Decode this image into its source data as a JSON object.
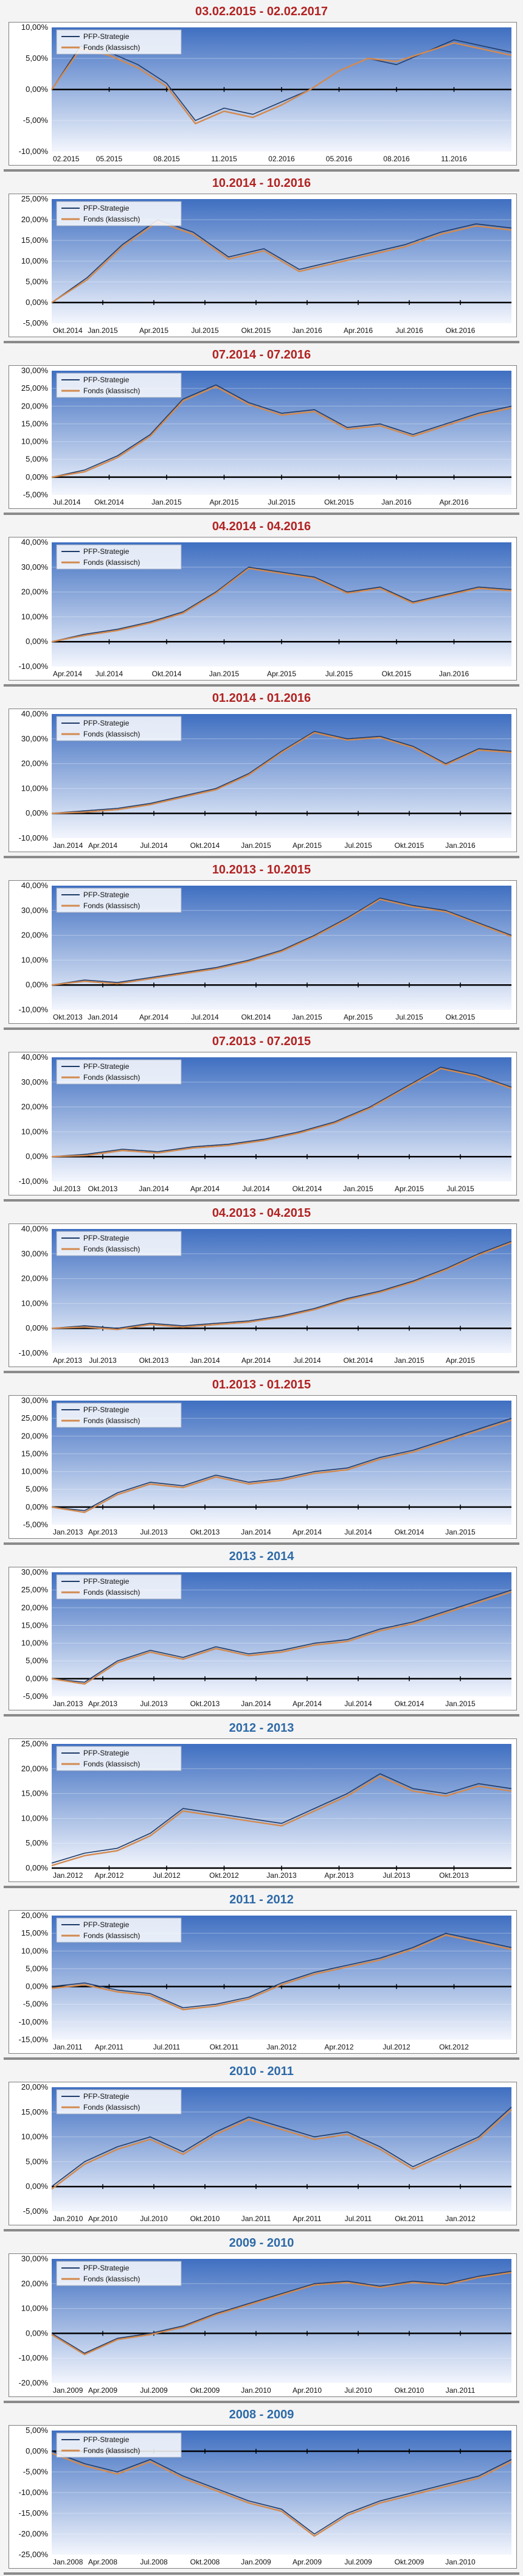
{
  "legend": {
    "strategy": "PFP-Strategie",
    "fund": "Fonds (klassisch)"
  },
  "colors": {
    "strategy": "#1f3b68",
    "fund": "#d38a4f",
    "plot_top": "#3f6fc1",
    "plot_bottom": "#f3f6fd",
    "title_red": "#b22222",
    "title_blue": "#2e6aa8"
  },
  "chart_data": [
    {
      "type": "line",
      "title": "03.02.2015 - 02.02.2017",
      "title_color": "red",
      "y_ticks": [
        "10,00%",
        "5,00%",
        "0,00%",
        "-5,00%",
        "-10,00%"
      ],
      "ylim": [
        -10,
        10
      ],
      "x_ticks": [
        "02.2015",
        "05.2015",
        "08.2015",
        "11.2015",
        "02.2016",
        "05.2016",
        "08.2016",
        "11.2016"
      ],
      "series": [
        {
          "name": "PFP-Strategie",
          "values": [
            0,
            7,
            6,
            4,
            1,
            -5,
            -3,
            -4,
            -2,
            0,
            3,
            5,
            4,
            6,
            8,
            7,
            6
          ]
        },
        {
          "name": "Fonds (klassisch)",
          "values": [
            0,
            6.5,
            5.5,
            3.5,
            0.5,
            -5.5,
            -3.5,
            -4.5,
            -2.5,
            0,
            3,
            5,
            4.5,
            6,
            7.5,
            6.5,
            5.5
          ]
        }
      ]
    },
    {
      "type": "line",
      "title": "10.2014 - 10.2016",
      "title_color": "red",
      "y_ticks": [
        "25,00%",
        "20,00%",
        "15,00%",
        "10,00%",
        "5,00%",
        "0,00%",
        "-5,00%"
      ],
      "ylim": [
        -5,
        25
      ],
      "x_ticks": [
        "Okt.2014",
        "Jan.2015",
        "Apr.2015",
        "Jul.2015",
        "Okt.2015",
        "Jan.2016",
        "Apr.2016",
        "Jul.2016",
        "Okt.2016"
      ],
      "series": [
        {
          "name": "PFP-Strategie",
          "values": [
            0,
            6,
            14,
            20,
            17,
            11,
            13,
            8,
            10,
            12,
            14,
            17,
            19,
            18
          ]
        },
        {
          "name": "Fonds (klassisch)",
          "values": [
            0,
            5.5,
            13.5,
            19.5,
            16.5,
            10.5,
            12.5,
            7.5,
            9.5,
            11.5,
            13.5,
            16.5,
            18.5,
            17.5
          ]
        }
      ]
    },
    {
      "type": "line",
      "title": "07.2014 - 07.2016",
      "title_color": "red",
      "y_ticks": [
        "30,00%",
        "25,00%",
        "20,00%",
        "15,00%",
        "10,00%",
        "5,00%",
        "0,00%",
        "-5,00%"
      ],
      "ylim": [
        -5,
        30
      ],
      "x_ticks": [
        "Jul.2014",
        "Okt.2014",
        "Jan.2015",
        "Apr.2015",
        "Jul.2015",
        "Okt.2015",
        "Jan.2016",
        "Apr.2016"
      ],
      "series": [
        {
          "name": "PFP-Strategie",
          "values": [
            0,
            2,
            6,
            12,
            22,
            26,
            21,
            18,
            19,
            14,
            15,
            12,
            15,
            18,
            20
          ]
        },
        {
          "name": "Fonds (klassisch)",
          "values": [
            0,
            1.5,
            5.5,
            11.5,
            21.5,
            25.5,
            20.5,
            17.5,
            18.5,
            13.5,
            14.5,
            11.5,
            14.5,
            17.5,
            19.5
          ]
        }
      ]
    },
    {
      "type": "line",
      "title": "04.2014 - 04.2016",
      "title_color": "red",
      "y_ticks": [
        "40,00%",
        "30,00%",
        "20,00%",
        "10,00%",
        "0,00%",
        "-10,00%"
      ],
      "ylim": [
        -10,
        40
      ],
      "x_ticks": [
        "Apr.2014",
        "Jul.2014",
        "Okt.2014",
        "Jan.2015",
        "Apr.2015",
        "Jul.2015",
        "Okt.2015",
        "Jan.2016"
      ],
      "series": [
        {
          "name": "PFP-Strategie",
          "values": [
            0,
            3,
            5,
            8,
            12,
            20,
            30,
            28,
            26,
            20,
            22,
            16,
            19,
            22,
            21
          ]
        },
        {
          "name": "Fonds (klassisch)",
          "values": [
            0,
            2.5,
            4.5,
            7.5,
            11.5,
            19.5,
            29.5,
            27.5,
            25.5,
            19.5,
            21.5,
            15.5,
            18.5,
            21.5,
            20.5
          ]
        }
      ]
    },
    {
      "type": "line",
      "title": "01.2014 - 01.2016",
      "title_color": "red",
      "y_ticks": [
        "40,00%",
        "30,00%",
        "20,00%",
        "10,00%",
        "0,00%",
        "-10,00%"
      ],
      "ylim": [
        -10,
        40
      ],
      "x_ticks": [
        "Jan.2014",
        "Apr.2014",
        "Jul.2014",
        "Okt.2014",
        "Jan.2015",
        "Apr.2015",
        "Jul.2015",
        "Okt.2015",
        "Jan.2016"
      ],
      "series": [
        {
          "name": "PFP-Strategie",
          "values": [
            0,
            1,
            2,
            4,
            7,
            10,
            16,
            25,
            33,
            30,
            31,
            27,
            20,
            26,
            25
          ]
        },
        {
          "name": "Fonds (klassisch)",
          "values": [
            0,
            0.5,
            1.5,
            3.5,
            6.5,
            9.5,
            15.5,
            24.5,
            32.5,
            29.5,
            30.5,
            26.5,
            19.5,
            25.5,
            24.5
          ]
        }
      ]
    },
    {
      "type": "line",
      "title": "10.2013 - 10.2015",
      "title_color": "red",
      "y_ticks": [
        "40,00%",
        "30,00%",
        "20,00%",
        "10,00%",
        "0,00%",
        "-10,00%"
      ],
      "ylim": [
        -10,
        40
      ],
      "x_ticks": [
        "Okt.2013",
        "Jan.2014",
        "Apr.2014",
        "Jul.2014",
        "Okt.2014",
        "Jan.2015",
        "Apr.2015",
        "Jul.2015",
        "Okt.2015"
      ],
      "series": [
        {
          "name": "PFP-Strategie",
          "values": [
            0,
            2,
            1,
            3,
            5,
            7,
            10,
            14,
            20,
            27,
            35,
            32,
            30,
            25,
            20
          ]
        },
        {
          "name": "Fonds (klassisch)",
          "values": [
            0,
            1.5,
            0.5,
            2.5,
            4.5,
            6.5,
            9.5,
            13.5,
            19.5,
            26.5,
            34.5,
            31.5,
            29.5,
            24.5,
            19.5
          ]
        }
      ]
    },
    {
      "type": "line",
      "title": "07.2013 - 07.2015",
      "title_color": "red",
      "y_ticks": [
        "40,00%",
        "30,00%",
        "20,00%",
        "10,00%",
        "0,00%",
        "-10,00%"
      ],
      "ylim": [
        -10,
        40
      ],
      "x_ticks": [
        "Jul.2013",
        "Okt.2013",
        "Jan.2014",
        "Apr.2014",
        "Jul.2014",
        "Okt.2014",
        "Jan.2015",
        "Apr.2015",
        "Jul.2015"
      ],
      "series": [
        {
          "name": "PFP-Strategie",
          "values": [
            0,
            1,
            3,
            2,
            4,
            5,
            7,
            10,
            14,
            20,
            28,
            36,
            33,
            28
          ]
        },
        {
          "name": "Fonds (klassisch)",
          "values": [
            0,
            0.5,
            2.5,
            1.5,
            3.5,
            4.5,
            6.5,
            9.5,
            13.5,
            19.5,
            27.5,
            35.5,
            32.5,
            27.5
          ]
        }
      ]
    },
    {
      "type": "line",
      "title": "04.2013 - 04.2015",
      "title_color": "red",
      "y_ticks": [
        "40,00%",
        "30,00%",
        "20,00%",
        "10,00%",
        "0,00%",
        "-10,00%"
      ],
      "ylim": [
        -10,
        40
      ],
      "x_ticks": [
        "Apr.2013",
        "Jul.2013",
        "Okt.2013",
        "Jan.2014",
        "Apr.2014",
        "Jul.2014",
        "Okt.2014",
        "Jan.2015",
        "Apr.2015"
      ],
      "series": [
        {
          "name": "PFP-Strategie",
          "values": [
            0,
            1,
            0,
            2,
            1,
            2,
            3,
            5,
            8,
            12,
            15,
            19,
            24,
            30,
            35
          ]
        },
        {
          "name": "Fonds (klassisch)",
          "values": [
            0,
            0.5,
            -0.5,
            1.5,
            0.5,
            1.5,
            2.5,
            4.5,
            7.5,
            11.5,
            14.5,
            18.5,
            23.5,
            29.5,
            34.5
          ]
        }
      ]
    },
    {
      "type": "line",
      "title": "01.2013 - 01.2015",
      "title_color": "red",
      "y_ticks": [
        "30,00%",
        "25,00%",
        "20,00%",
        "15,00%",
        "10,00%",
        "5,00%",
        "0,00%",
        "-5,00%"
      ],
      "ylim": [
        -5,
        30
      ],
      "x_ticks": [
        "Jan.2013",
        "Apr.2013",
        "Jul.2013",
        "Okt.2013",
        "Jan.2014",
        "Apr.2014",
        "Jul.2014",
        "Okt.2014",
        "Jan.2015"
      ],
      "series": [
        {
          "name": "PFP-Strategie",
          "values": [
            0,
            -1,
            4,
            7,
            6,
            9,
            7,
            8,
            10,
            11,
            14,
            16,
            19,
            22,
            25
          ]
        },
        {
          "name": "Fonds (klassisch)",
          "values": [
            0,
            -1.5,
            3.5,
            6.5,
            5.5,
            8.5,
            6.5,
            7.5,
            9.5,
            10.5,
            13.5,
            15.5,
            18.5,
            21.5,
            24.5
          ]
        }
      ]
    },
    {
      "type": "line",
      "title": "2013 - 2014",
      "title_color": "blue",
      "y_ticks": [
        "30,00%",
        "25,00%",
        "20,00%",
        "15,00%",
        "10,00%",
        "5,00%",
        "0,00%",
        "-5,00%"
      ],
      "ylim": [
        -5,
        30
      ],
      "x_ticks": [
        "Jan.2013",
        "Apr.2013",
        "Jul.2013",
        "Okt.2013",
        "Jan.2014",
        "Apr.2014",
        "Jul.2014",
        "Okt.2014",
        "Jan.2015"
      ],
      "series": [
        {
          "name": "PFP-Strategie",
          "values": [
            0,
            -1,
            5,
            8,
            6,
            9,
            7,
            8,
            10,
            11,
            14,
            16,
            19,
            22,
            25
          ]
        },
        {
          "name": "Fonds (klassisch)",
          "values": [
            0,
            -1.5,
            4.5,
            7.5,
            5.5,
            8.5,
            6.5,
            7.5,
            9.5,
            10.5,
            13.5,
            15.5,
            18.5,
            21.5,
            24.5
          ]
        }
      ]
    },
    {
      "type": "line",
      "title": "2012 - 2013",
      "title_color": "blue",
      "y_ticks": [
        "25,00%",
        "20,00%",
        "15,00%",
        "10,00%",
        "5,00%",
        "0,00%"
      ],
      "ylim": [
        0,
        25
      ],
      "x_ticks": [
        "Jan.2012",
        "Apr.2012",
        "Jul.2012",
        "Okt.2012",
        "Jan.2013",
        "Apr.2013",
        "Jul.2013",
        "Okt.2013"
      ],
      "series": [
        {
          "name": "PFP-Strategie",
          "values": [
            1,
            3,
            4,
            7,
            12,
            11,
            10,
            9,
            12,
            15,
            19,
            16,
            15,
            17,
            16
          ]
        },
        {
          "name": "Fonds (klassisch)",
          "values": [
            0.5,
            2.5,
            3.5,
            6.5,
            11.5,
            10.5,
            9.5,
            8.5,
            11.5,
            14.5,
            18.5,
            15.5,
            14.5,
            16.5,
            15.5
          ]
        }
      ]
    },
    {
      "type": "line",
      "title": "2011 - 2012",
      "title_color": "blue",
      "y_ticks": [
        "20,00%",
        "15,00%",
        "10,00%",
        "5,00%",
        "0,00%",
        "-5,00%",
        "-10,00%",
        "-15,00%"
      ],
      "ylim": [
        -15,
        20
      ],
      "x_ticks": [
        "Jan.2011",
        "Apr.2011",
        "Jul.2011",
        "Okt.2011",
        "Jan.2012",
        "Apr.2012",
        "Jul.2012",
        "Okt.2012"
      ],
      "series": [
        {
          "name": "PFP-Strategie",
          "values": [
            0,
            1,
            -1,
            -2,
            -6,
            -5,
            -3,
            1,
            4,
            6,
            8,
            11,
            15,
            13,
            11
          ]
        },
        {
          "name": "Fonds (klassisch)",
          "values": [
            -0.5,
            0.5,
            -1.5,
            -2.5,
            -6.5,
            -5.5,
            -3.5,
            0.5,
            3.5,
            5.5,
            7.5,
            10.5,
            14.5,
            12.5,
            10.5
          ]
        }
      ]
    },
    {
      "type": "line",
      "title": "2010 - 2011",
      "title_color": "blue",
      "y_ticks": [
        "20,00%",
        "15,00%",
        "10,00%",
        "5,00%",
        "0,00%",
        "-5,00%"
      ],
      "ylim": [
        -5,
        20
      ],
      "x_ticks": [
        "Jan.2010",
        "Apr.2010",
        "Jul.2010",
        "Okt.2010",
        "Jan.2011",
        "Apr.2011",
        "Jul.2011",
        "Okt.2011",
        "Jan.2012"
      ],
      "series": [
        {
          "name": "PFP-Strategie",
          "values": [
            0,
            5,
            8,
            10,
            7,
            11,
            14,
            12,
            10,
            11,
            8,
            4,
            7,
            10,
            16
          ]
        },
        {
          "name": "Fonds (klassisch)",
          "values": [
            -0.5,
            4.5,
            7.5,
            9.5,
            6.5,
            10.5,
            13.5,
            11.5,
            9.5,
            10.5,
            7.5,
            3.5,
            6.5,
            9.5,
            15.5
          ]
        }
      ]
    },
    {
      "type": "line",
      "title": "2009 - 2010",
      "title_color": "blue",
      "y_ticks": [
        "30,00%",
        "20,00%",
        "10,00%",
        "0,00%",
        "-10,00%",
        "-20,00%"
      ],
      "ylim": [
        -20,
        30
      ],
      "x_ticks": [
        "Jan.2009",
        "Apr.2009",
        "Jul.2009",
        "Okt.2009",
        "Jan.2010",
        "Apr.2010",
        "Jul.2010",
        "Okt.2010",
        "Jan.2011"
      ],
      "series": [
        {
          "name": "PFP-Strategie",
          "values": [
            0,
            -8,
            -2,
            0,
            3,
            8,
            12,
            16,
            20,
            21,
            19,
            21,
            20,
            23,
            25
          ]
        },
        {
          "name": "Fonds (klassisch)",
          "values": [
            -0.5,
            -8.5,
            -2.5,
            -0.5,
            2.5,
            7.5,
            11.5,
            15.5,
            19.5,
            20.5,
            18.5,
            20.5,
            19.5,
            22.5,
            24.5
          ]
        }
      ]
    },
    {
      "type": "line",
      "title": "2008 - 2009",
      "title_color": "blue",
      "y_ticks": [
        "5,00%",
        "0,00%",
        "-5,00%",
        "-10,00%",
        "-15,00%",
        "-20,00%",
        "-25,00%"
      ],
      "ylim": [
        -25,
        5
      ],
      "x_ticks": [
        "Jan.2008",
        "Apr.2008",
        "Jul.2008",
        "Okt.2008",
        "Jan.2009",
        "Apr.2009",
        "Jul.2009",
        "Okt.2009",
        "Jan.2010"
      ],
      "series": [
        {
          "name": "PFP-Strategie",
          "values": [
            0,
            -3,
            -5,
            -2,
            -6,
            -9,
            -12,
            -14,
            -20,
            -15,
            -12,
            -10,
            -8,
            -6,
            -2
          ]
        },
        {
          "name": "Fonds (klassisch)",
          "values": [
            -0.5,
            -3.5,
            -5.5,
            -2.5,
            -6.5,
            -9.5,
            -12.5,
            -14.5,
            -20.5,
            -15.5,
            -12.5,
            -10.5,
            -8.5,
            -6.5,
            -2.5
          ]
        }
      ]
    }
  ]
}
